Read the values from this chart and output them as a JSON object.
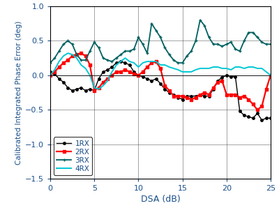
{
  "xlabel": "DSA (dB)",
  "ylabel": "Calibrated Integrated Phase Error (deg)",
  "xlim": [
    0,
    25
  ],
  "ylim": [
    -1.5,
    1.0
  ],
  "yticks": [
    -1.5,
    -1.0,
    -0.5,
    0.0,
    0.5,
    1.0
  ],
  "xticks": [
    0,
    5,
    10,
    15,
    20,
    25
  ],
  "series": {
    "1RX": {
      "color": "#000000",
      "marker": "o",
      "markersize": 2.5,
      "linewidth": 1.0,
      "x": [
        0,
        0.5,
        1,
        1.5,
        2,
        2.5,
        3,
        3.5,
        4,
        4.5,
        5,
        5.5,
        6,
        6.5,
        7,
        7.5,
        8,
        8.5,
        9,
        9.5,
        10,
        10.5,
        11,
        11.5,
        12,
        12.5,
        13,
        13.5,
        14,
        14.5,
        15,
        15.5,
        16,
        16.5,
        17,
        17.5,
        18,
        18.5,
        19,
        19.5,
        20,
        20.5,
        21,
        21.5,
        22,
        22.5,
        23,
        23.5,
        24,
        24.5,
        25
      ],
      "y": [
        0.05,
        0.02,
        -0.05,
        -0.1,
        -0.18,
        -0.22,
        -0.2,
        -0.18,
        -0.22,
        -0.2,
        -0.22,
        -0.05,
        0.05,
        0.08,
        0.12,
        0.18,
        0.2,
        0.18,
        0.15,
        0.05,
        0.0,
        -0.02,
        -0.05,
        -0.08,
        -0.05,
        -0.12,
        -0.2,
        -0.25,
        -0.28,
        -0.32,
        -0.35,
        -0.3,
        -0.3,
        -0.3,
        -0.28,
        -0.3,
        -0.3,
        -0.2,
        -0.08,
        -0.03,
        0.0,
        -0.02,
        -0.02,
        -0.52,
        -0.58,
        -0.6,
        -0.62,
        -0.55,
        -0.65,
        -0.62,
        -0.62
      ]
    },
    "2RX": {
      "color": "#ff0000",
      "marker": "s",
      "markersize": 2.5,
      "linewidth": 1.6,
      "x": [
        0,
        0.5,
        1,
        1.5,
        2,
        2.5,
        3,
        3.5,
        4,
        4.5,
        5,
        5.5,
        6,
        6.5,
        7,
        7.5,
        8,
        8.5,
        9,
        9.5,
        10,
        10.5,
        11,
        11.5,
        12,
        12.5,
        13,
        13.5,
        14,
        14.5,
        15,
        15.5,
        16,
        16.5,
        17,
        17.5,
        18,
        18.5,
        19,
        19.5,
        20,
        20.5,
        21,
        21.5,
        22,
        22.5,
        23,
        23.5,
        24,
        24.5,
        25
      ],
      "y": [
        0.0,
        0.05,
        0.12,
        0.18,
        0.22,
        0.28,
        0.3,
        0.32,
        0.28,
        0.15,
        -0.22,
        -0.18,
        -0.1,
        -0.05,
        0.0,
        0.05,
        0.05,
        0.08,
        0.05,
        0.02,
        0.0,
        0.05,
        0.12,
        0.18,
        0.2,
        0.1,
        -0.15,
        -0.22,
        -0.3,
        -0.3,
        -0.3,
        -0.32,
        -0.35,
        -0.32,
        -0.28,
        -0.25,
        -0.28,
        -0.18,
        -0.1,
        -0.08,
        -0.28,
        -0.28,
        -0.28,
        -0.32,
        -0.3,
        -0.35,
        -0.42,
        -0.5,
        -0.45,
        -0.2,
        0.0
      ]
    },
    "3RX": {
      "color": "#006060",
      "marker": "+",
      "markersize": 3,
      "linewidth": 1.3,
      "x": [
        0,
        0.5,
        1,
        1.5,
        2,
        2.5,
        3,
        3.5,
        4,
        4.5,
        5,
        5.5,
        6,
        6.5,
        7,
        7.5,
        8,
        8.5,
        9,
        9.5,
        10,
        10.5,
        11,
        11.5,
        12,
        12.5,
        13,
        13.5,
        14,
        14.5,
        15,
        15.5,
        16,
        16.5,
        17,
        17.5,
        18,
        18.5,
        19,
        19.5,
        20,
        20.5,
        21,
        21.5,
        22,
        22.5,
        23,
        23.5,
        24,
        24.5,
        25
      ],
      "y": [
        0.18,
        0.25,
        0.35,
        0.45,
        0.5,
        0.45,
        0.3,
        0.22,
        0.22,
        0.35,
        0.48,
        0.4,
        0.25,
        0.22,
        0.2,
        0.25,
        0.3,
        0.35,
        0.35,
        0.38,
        0.55,
        0.45,
        0.32,
        0.75,
        0.65,
        0.55,
        0.4,
        0.3,
        0.22,
        0.18,
        0.18,
        0.28,
        0.35,
        0.5,
        0.8,
        0.72,
        0.55,
        0.45,
        0.45,
        0.42,
        0.45,
        0.48,
        0.38,
        0.35,
        0.5,
        0.62,
        0.62,
        0.55,
        0.48,
        0.45,
        0.45
      ]
    },
    "4RX": {
      "color": "#00c8d4",
      "marker": null,
      "markersize": 0,
      "linewidth": 1.4,
      "x": [
        0,
        0.5,
        1,
        1.5,
        2,
        2.5,
        3,
        3.5,
        4,
        4.5,
        5,
        5.5,
        6,
        6.5,
        7,
        7.5,
        8,
        8.5,
        9,
        9.5,
        10,
        10.5,
        11,
        11.5,
        12,
        12.5,
        13,
        13.5,
        14,
        14.5,
        15,
        15.5,
        16,
        16.5,
        17,
        17.5,
        18,
        18.5,
        19,
        19.5,
        20,
        20.5,
        21,
        21.5,
        22,
        22.5,
        23,
        23.5,
        24,
        24.5,
        25
      ],
      "y": [
        0.0,
        0.08,
        0.2,
        0.28,
        0.32,
        0.3,
        0.25,
        0.15,
        0.1,
        0.0,
        -0.18,
        -0.2,
        -0.15,
        -0.08,
        0.05,
        0.15,
        0.2,
        0.25,
        0.2,
        0.18,
        0.12,
        0.18,
        0.2,
        0.2,
        0.2,
        0.15,
        0.15,
        0.12,
        0.1,
        0.08,
        0.05,
        0.05,
        0.05,
        0.08,
        0.1,
        0.1,
        0.1,
        0.12,
        0.12,
        0.1,
        0.1,
        0.08,
        0.12,
        0.12,
        0.1,
        0.12,
        0.12,
        0.1,
        0.1,
        0.05,
        0.0
      ]
    }
  }
}
